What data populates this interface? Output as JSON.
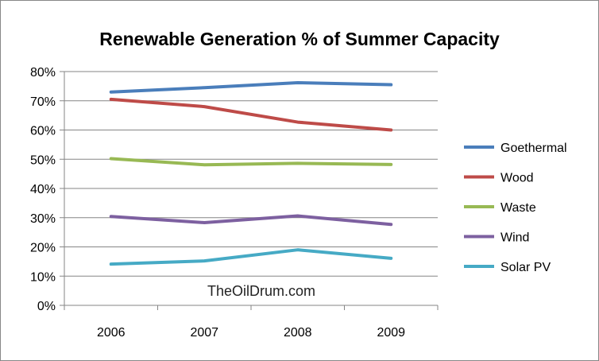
{
  "chart_data": {
    "type": "line",
    "title": "Renewable Generation % of Summer Capacity",
    "xlabel": "",
    "ylabel": "",
    "categories": [
      "2006",
      "2007",
      "2008",
      "2009"
    ],
    "ylim": [
      0,
      80
    ],
    "yticks": [
      "0%",
      "10%",
      "20%",
      "30%",
      "40%",
      "50%",
      "60%",
      "70%",
      "80%"
    ],
    "grid": true,
    "legend_position": "right",
    "series": [
      {
        "name": "Goethermal",
        "color": "#4a7ebb",
        "values": [
          73,
          74.5,
          76.2,
          75.5
        ]
      },
      {
        "name": "Wood",
        "color": "#be4b48",
        "values": [
          70.5,
          68,
          62.7,
          60
        ]
      },
      {
        "name": "Waste",
        "color": "#98b954",
        "values": [
          50.2,
          48.1,
          48.6,
          48.2
        ]
      },
      {
        "name": "Wind",
        "color": "#7d60a0",
        "values": [
          30.4,
          28.3,
          30.6,
          27.7
        ]
      },
      {
        "name": "Solar PV",
        "color": "#46aac5",
        "values": [
          14.1,
          15.2,
          19,
          16.1
        ]
      }
    ]
  },
  "watermark": "TheOilDrum.com"
}
